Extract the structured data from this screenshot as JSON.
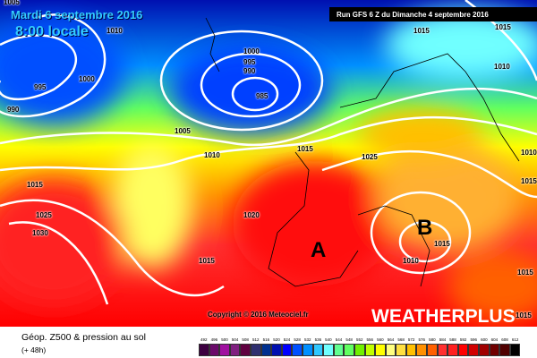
{
  "header": {
    "date": "Mardi 6 septembre 2016",
    "hour": "8:00 locale",
    "run": "Run GFS 6 Z du Dimanche 4 septembre 2016"
  },
  "isobar_labels": [
    "1005",
    "1010",
    "1000",
    "995",
    "990",
    "1000",
    "995",
    "990",
    "985",
    "1005",
    "1010",
    "1015",
    "1015",
    "1010",
    "1015",
    "1025",
    "1025",
    "1030",
    "1020",
    "1015",
    "1015",
    "1010",
    "1015",
    "1015",
    "1010",
    "1015",
    "1015"
  ],
  "highs_lows": {
    "high": "A",
    "low": "B"
  },
  "footer": {
    "copyright": "Copyright © 2016 Meteociel.fr",
    "brand": "WEATHERPLUS",
    "legend_title": "Géop. Z500 & pression au sol",
    "legend_sub": "(+ 48h)"
  },
  "legend": {
    "values": [
      "492",
      "496",
      "500",
      "504",
      "508",
      "512",
      "516",
      "520",
      "524",
      "528",
      "532",
      "536",
      "540",
      "544",
      "548",
      "552",
      "556",
      "560",
      "564",
      "568",
      "572",
      "576",
      "580",
      "584",
      "588",
      "592",
      "596",
      "600",
      "604",
      "608",
      "612"
    ],
    "colors": [
      "#3c0040",
      "#6a0a6a",
      "#a010a0",
      "#802080",
      "#600040",
      "#303070",
      "#003090",
      "#0010b0",
      "#0000ff",
      "#0050ff",
      "#0090ff",
      "#30c8ff",
      "#70ffff",
      "#60ff90",
      "#60ff60",
      "#70f000",
      "#c0ff00",
      "#ffff00",
      "#ffff80",
      "#ffe040",
      "#ffc000",
      "#ff9000",
      "#ff6000",
      "#ff3030",
      "#ff2020",
      "#ff0000",
      "#d00000",
      "#a00000",
      "#700000",
      "#500000",
      "#000000"
    ]
  }
}
